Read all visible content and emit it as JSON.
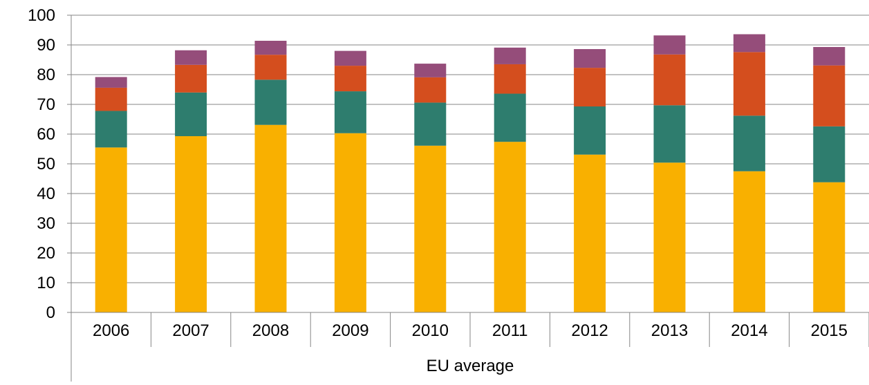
{
  "chart_data": {
    "type": "bar",
    "stacked": true,
    "categories": [
      "2006",
      "2007",
      "2008",
      "2009",
      "2010",
      "2011",
      "2012",
      "2013",
      "2014",
      "2015"
    ],
    "group_label": "EU average",
    "series": [
      {
        "color": "#F9B000",
        "values": [
          55.5,
          59.3,
          63.1,
          60.3,
          56.1,
          57.4,
          53.1,
          50.4,
          47.5,
          43.8
        ]
      },
      {
        "color": "#2E7D6E",
        "values": [
          12.3,
          14.7,
          15.2,
          14.1,
          14.5,
          16.2,
          16.2,
          19.3,
          18.7,
          18.8
        ]
      },
      {
        "color": "#D44E1E",
        "values": [
          7.8,
          9.3,
          8.4,
          8.6,
          8.5,
          9.9,
          13.0,
          17.1,
          21.4,
          20.5
        ]
      },
      {
        "color": "#954D7A",
        "values": [
          3.6,
          4.9,
          4.7,
          5.0,
          4.6,
          5.6,
          6.3,
          6.4,
          6.0,
          6.2
        ]
      }
    ],
    "ylim": [
      0,
      100
    ],
    "yticks": [
      "0",
      "10",
      "20",
      "30",
      "40",
      "50",
      "60",
      "70",
      "80",
      "90",
      "100"
    ],
    "ytick_values": [
      0,
      10,
      20,
      30,
      40,
      50,
      60,
      70,
      80,
      90,
      100
    ],
    "grid": true,
    "legend": "none"
  }
}
